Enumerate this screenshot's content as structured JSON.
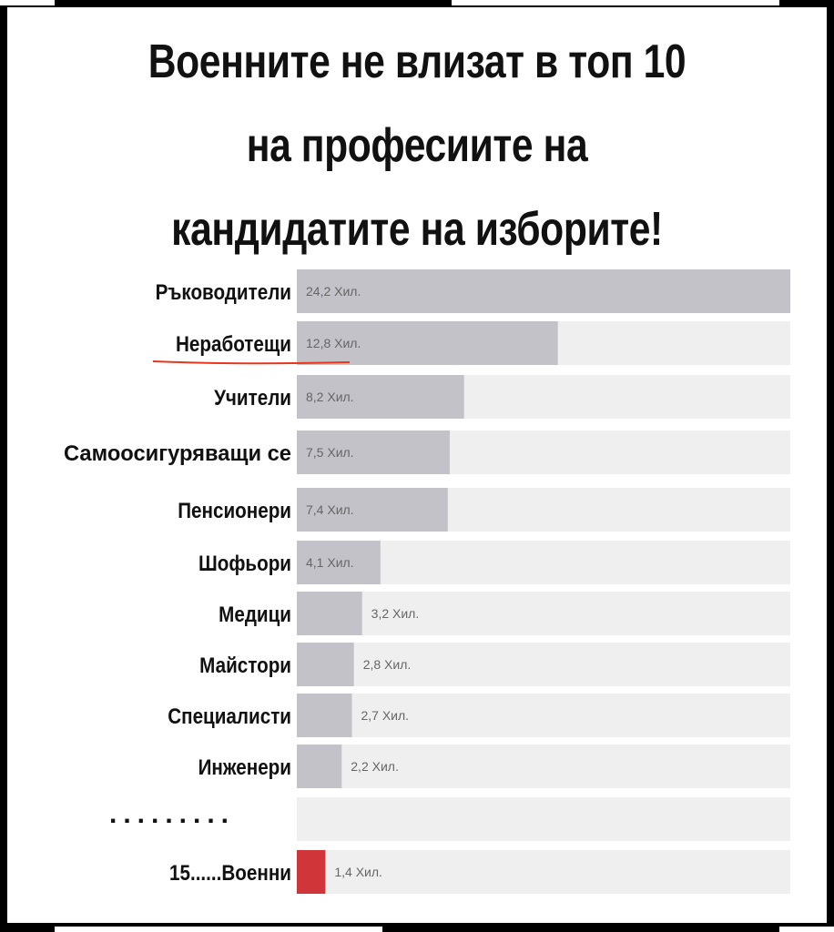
{
  "title_lines": [
    "Военните не влизат в топ 10",
    "на професиите на",
    "кандидатите на изборите!"
  ],
  "ellipsis": ".........",
  "colors": {
    "bar": "#c2c2c8",
    "track": "#efefef",
    "highlight_bar": "#d0353a",
    "underline": "#e8361d"
  },
  "chart_data": {
    "type": "bar",
    "orientation": "horizontal",
    "categories": [
      "Ръководители",
      "Неработещи",
      "Учители",
      "Самоосигуряващи се",
      "Пенсионери",
      "Шофьори",
      "Медици",
      "Майстори",
      "Специалисти",
      "Инженери",
      "15......Военни"
    ],
    "values": [
      24.2,
      12.8,
      8.2,
      7.5,
      7.4,
      4.1,
      3.2,
      2.8,
      2.7,
      2.2,
      1.4
    ],
    "value_labels": [
      "24,2 Хил.",
      "12,8 Хил.",
      "8,2 Хил.",
      "7,5 Хил.",
      "7,4 Хил.",
      "4,1 Хил.",
      "3,2 Хил.",
      "2,8 Хил.",
      "2,7 Хил.",
      "2,2 Хил.",
      "1,4 Хил."
    ],
    "highlighted": [
      "15......Военни"
    ],
    "underlined": [
      "Неработещи"
    ],
    "xlim": [
      0,
      24.2
    ],
    "grid": false,
    "legend": "none"
  }
}
